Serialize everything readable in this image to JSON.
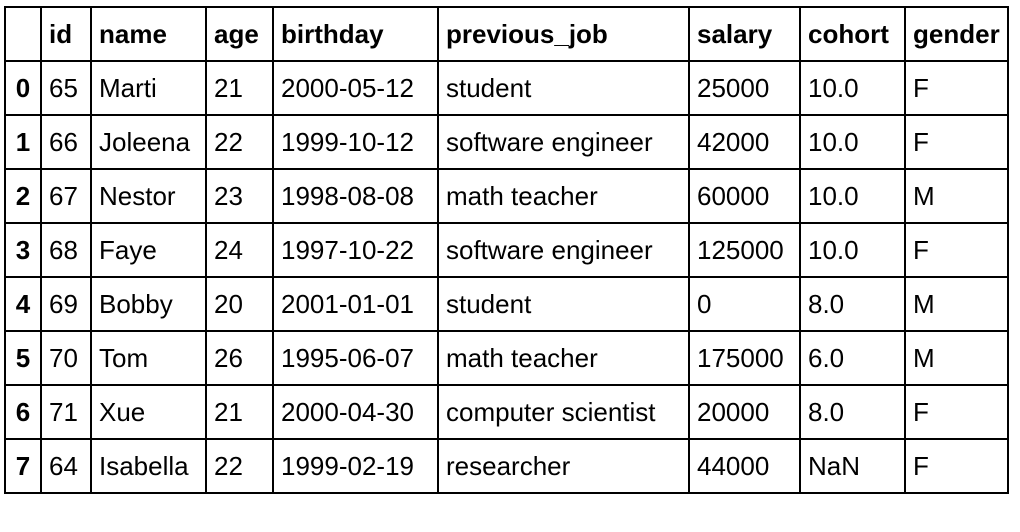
{
  "table": {
    "index_header": "",
    "columns": [
      "id",
      "name",
      "age",
      "birthday",
      "previous_job",
      "salary",
      "cohort",
      "gender"
    ],
    "rows": [
      {
        "index": "0",
        "cells": [
          "65",
          "Marti",
          "21",
          "2000-05-12",
          "student",
          "25000",
          "10.0",
          "F"
        ]
      },
      {
        "index": "1",
        "cells": [
          "66",
          "Joleena",
          "22",
          "1999-10-12",
          "software engineer",
          "42000",
          "10.0",
          "F"
        ]
      },
      {
        "index": "2",
        "cells": [
          "67",
          "Nestor",
          "23",
          "1998-08-08",
          "math teacher",
          "60000",
          "10.0",
          "M"
        ]
      },
      {
        "index": "3",
        "cells": [
          "68",
          "Faye",
          "24",
          "1997-10-22",
          "software engineer",
          "125000",
          "10.0",
          "F"
        ]
      },
      {
        "index": "4",
        "cells": [
          "69",
          "Bobby",
          "20",
          "2001-01-01",
          "student",
          "0",
          "8.0",
          "M"
        ]
      },
      {
        "index": "5",
        "cells": [
          "70",
          "Tom",
          "26",
          "1995-06-07",
          "math teacher",
          "175000",
          "6.0",
          "M"
        ]
      },
      {
        "index": "6",
        "cells": [
          "71",
          "Xue",
          "21",
          "2000-04-30",
          "computer scientist",
          "20000",
          "8.0",
          "F"
        ]
      },
      {
        "index": "7",
        "cells": [
          "64",
          "Isabella",
          "22",
          "1999-02-19",
          "researcher",
          "44000",
          "NaN",
          "F"
        ]
      }
    ]
  }
}
